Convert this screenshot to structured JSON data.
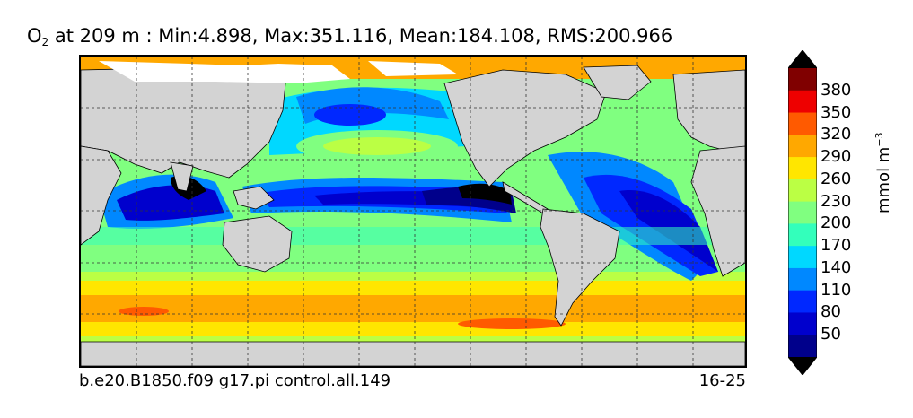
{
  "title": {
    "species": "O",
    "species_sub": "2",
    "text": " at 209 m : Min:4.898, Max:351.116, Mean:184.108, RMS:200.966"
  },
  "footer": {
    "case_name": "b.e20.B1850.f09 g17.pi control.all.149",
    "years": "16-25"
  },
  "colorbar": {
    "units_main": "mmol m",
    "units_sup": "−3",
    "ticks": [
      "50",
      "80",
      "110",
      "140",
      "170",
      "200",
      "230",
      "260",
      "290",
      "320",
      "350",
      "380"
    ],
    "colors": [
      "#00008b",
      "#0000cd",
      "#0028ff",
      "#0088ff",
      "#00d8ff",
      "#33ffbb",
      "#80ff80",
      "#bbff44",
      "#ffe600",
      "#ffa800",
      "#ff5a00",
      "#ee0000",
      "#800000"
    ],
    "under_color": "#000000",
    "over_color": "#000000"
  },
  "map": {
    "land_color": "#d3d3d3",
    "ice_color": "#ffffff",
    "grid": "dashed"
  }
}
